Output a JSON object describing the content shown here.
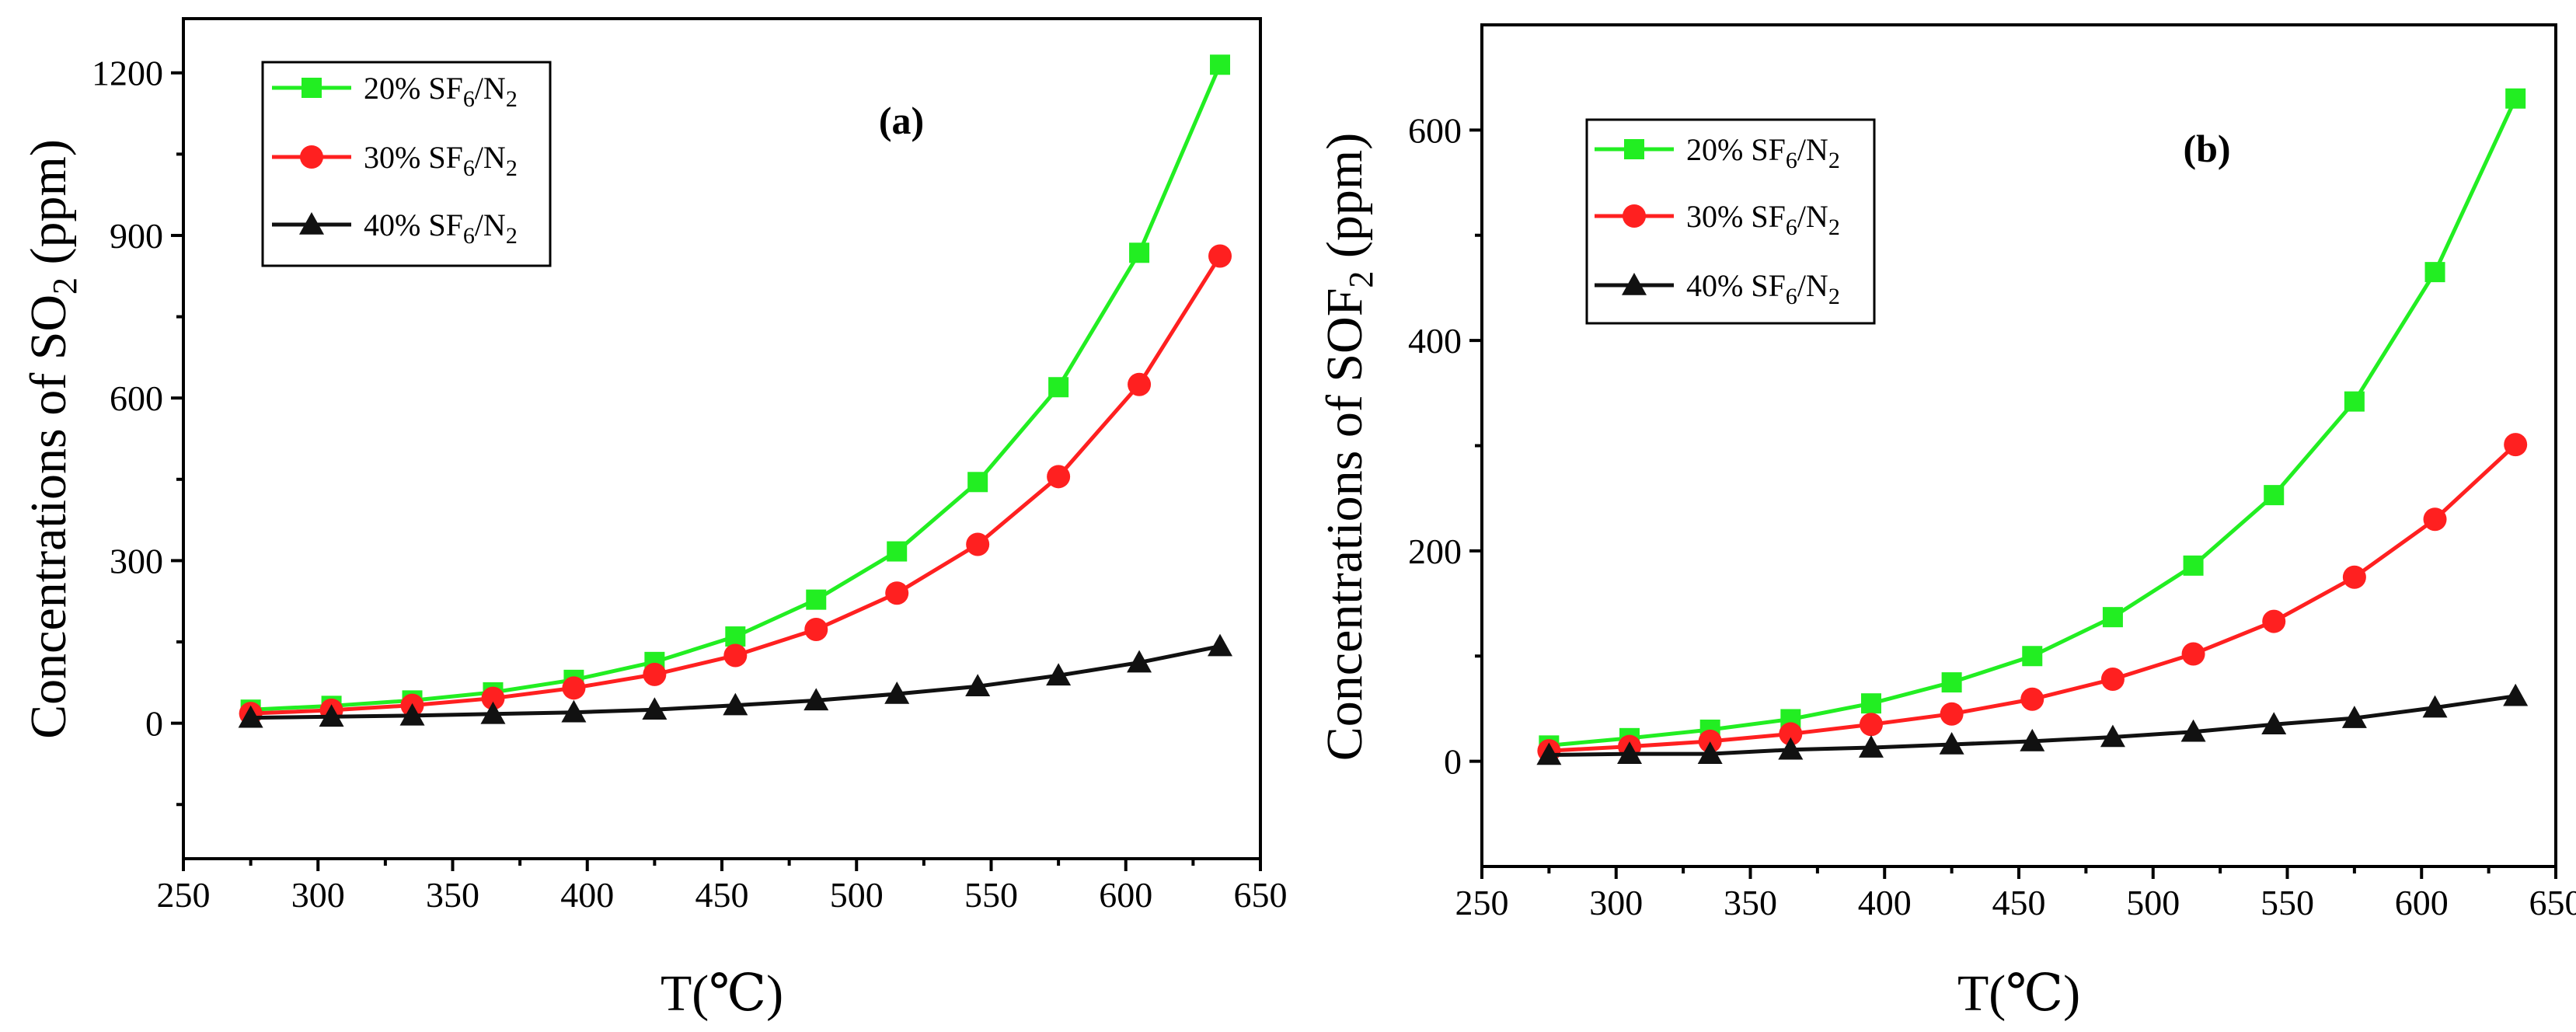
{
  "chart_data": [
    {
      "type": "line",
      "panel_label": "(a)",
      "xlabel": "T(℃)",
      "ylabel": {
        "main": "Concentrations of SO",
        "sub": "2",
        "unit": " (ppm)"
      },
      "xlim": [
        250,
        650
      ],
      "ylim": [
        -250,
        1300
      ],
      "xticks": [
        250,
        300,
        350,
        400,
        450,
        500,
        550,
        600,
        650
      ],
      "yticks": [
        0,
        300,
        600,
        900,
        1200
      ],
      "x": [
        275,
        305,
        335,
        365,
        395,
        425,
        455,
        485,
        515,
        545,
        575,
        605,
        635
      ],
      "series": [
        {
          "name": "20% SF6/N2",
          "label": {
            "a": "20% SF",
            "b": "6",
            "c": "/N",
            "d": "2"
          },
          "color": "#22ee22",
          "marker": "square",
          "values": [
            25,
            32,
            42,
            57,
            80,
            113,
            160,
            228,
            317,
            445,
            620,
            868,
            1215
          ]
        },
        {
          "name": "30% SF6/N2",
          "label": {
            "a": "30% SF",
            "b": "6",
            "c": "/N",
            "d": "2"
          },
          "color": "#ff2020",
          "marker": "circle",
          "values": [
            18,
            24,
            33,
            46,
            65,
            90,
            125,
            173,
            240,
            330,
            455,
            625,
            862
          ]
        },
        {
          "name": "40% SF6/N2",
          "label": {
            "a": "40% SF",
            "b": "6",
            "c": "/N",
            "d": "2"
          },
          "color": "#111111",
          "marker": "triangle",
          "values": [
            10,
            12,
            14,
            17,
            20,
            25,
            33,
            42,
            54,
            68,
            88,
            112,
            142
          ]
        }
      ]
    },
    {
      "type": "line",
      "panel_label": "(b)",
      "xlabel": "T(℃)",
      "ylabel": {
        "main": "Concentrations of SOF",
        "sub": "2",
        "unit": " (ppm)"
      },
      "xlim": [
        250,
        650
      ],
      "ylim": [
        -100,
        700
      ],
      "xticks": [
        250,
        300,
        350,
        400,
        450,
        500,
        550,
        600,
        650
      ],
      "yticks": [
        0,
        200,
        400,
        600
      ],
      "x": [
        275,
        305,
        335,
        365,
        395,
        425,
        455,
        485,
        515,
        545,
        575,
        605,
        635
      ],
      "series": [
        {
          "name": "20% SF6/N2",
          "label": {
            "a": "20% SF",
            "b": "6",
            "c": "/N",
            "d": "2"
          },
          "color": "#22ee22",
          "marker": "square",
          "values": [
            15,
            22,
            30,
            40,
            55,
            75,
            100,
            137,
            186,
            253,
            342,
            465,
            630
          ]
        },
        {
          "name": "30% SF6/N2",
          "label": {
            "a": "30% SF",
            "b": "6",
            "c": "/N",
            "d": "2"
          },
          "color": "#ff2020",
          "marker": "circle",
          "values": [
            10,
            14,
            19,
            26,
            35,
            45,
            59,
            78,
            102,
            133,
            175,
            230,
            301
          ]
        },
        {
          "name": "40% SF6/N2",
          "label": {
            "a": "40% SF",
            "b": "6",
            "c": "/N",
            "d": "2"
          },
          "color": "#111111",
          "marker": "triangle",
          "values": [
            6,
            7,
            7,
            11,
            13,
            16,
            19,
            23,
            28,
            35,
            41,
            51,
            62
          ]
        }
      ]
    }
  ]
}
